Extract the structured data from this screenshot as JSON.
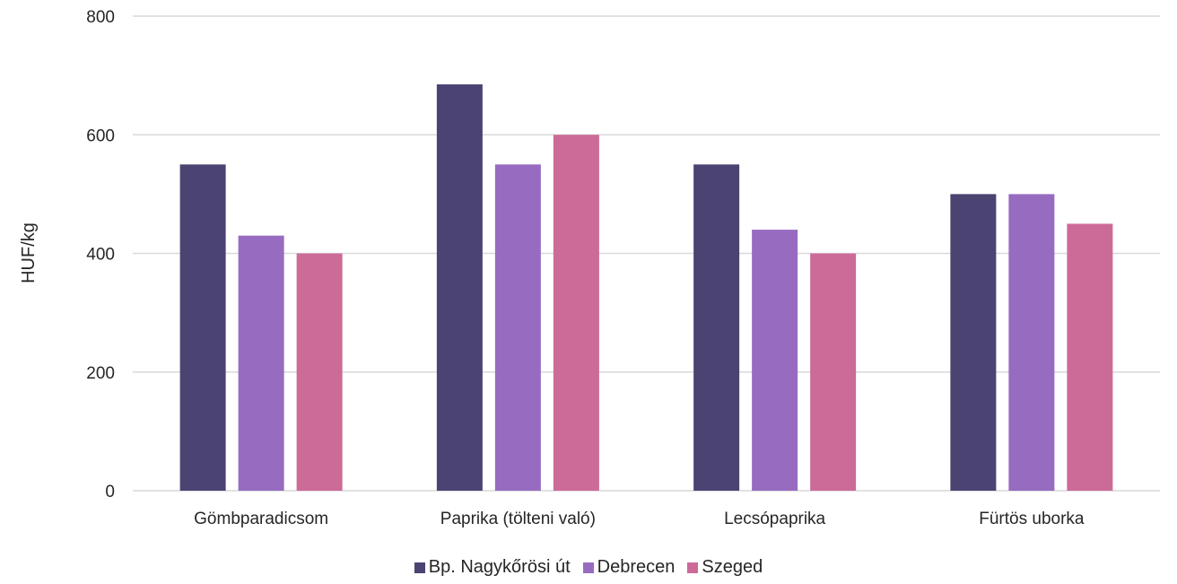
{
  "chart_data": {
    "type": "bar",
    "ylabel": "HUF/kg",
    "xlabel": "",
    "ylim": [
      0,
      800
    ],
    "yticks": [
      0,
      200,
      400,
      600,
      800
    ],
    "grid": true,
    "legend_position": "bottom",
    "categories": [
      "Gömbparadicsom",
      "Paprika (tölteni való)",
      "Lecsópaprika",
      "Fürtös uborka"
    ],
    "series": [
      {
        "name": "Bp. Nagykőrösi út",
        "color": "#4b4372",
        "values": [
          550,
          685,
          550,
          500
        ]
      },
      {
        "name": "Debrecen",
        "color": "#976cc0",
        "values": [
          430,
          550,
          440,
          500
        ]
      },
      {
        "name": "Szeged",
        "color": "#cc6a98",
        "values": [
          400,
          600,
          400,
          450
        ]
      }
    ]
  }
}
